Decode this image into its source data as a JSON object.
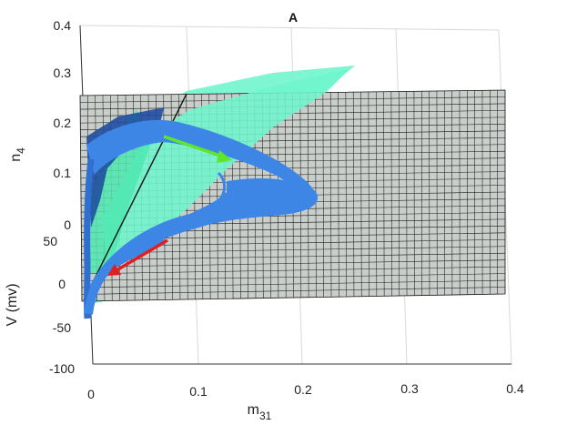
{
  "chart_data": {
    "type": "surface3d",
    "title": "A",
    "axes": {
      "n4": {
        "label": "n",
        "sub": "4",
        "ticks": [
          "0",
          "0.1",
          "0.2",
          "0.3",
          "0.4"
        ],
        "range": [
          0,
          0.4
        ]
      },
      "V": {
        "label": "V (mv)",
        "ticks": [
          "50",
          "0",
          "-50",
          "-100"
        ],
        "range": [
          -100,
          50
        ]
      },
      "m31": {
        "label": "m",
        "sub": "31",
        "ticks": [
          "0",
          "0.1",
          "0.2",
          "0.3",
          "0.4"
        ],
        "range": [
          0,
          0.4
        ]
      }
    },
    "grid": true,
    "layers": [
      {
        "name": "gray-plane",
        "color": "#c9cecb"
      },
      {
        "name": "green-sheet",
        "color": "#6ff5cc"
      },
      {
        "name": "blue-trajectory",
        "color": "#3d86e6"
      }
    ],
    "arrows": [
      {
        "color": "#5fe62a",
        "direction": "down-right"
      },
      {
        "color": "#e02020",
        "direction": "down-left"
      }
    ]
  }
}
